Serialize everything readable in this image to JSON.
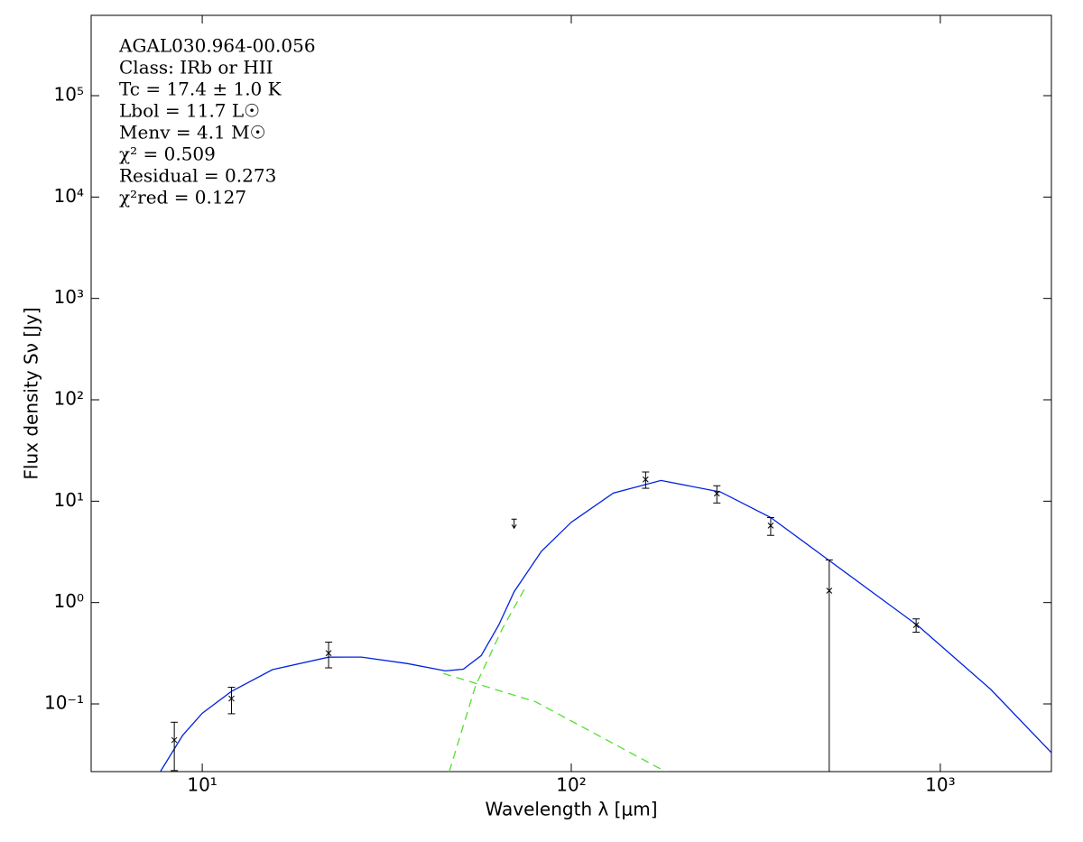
{
  "chart_data": {
    "type": "sed",
    "xlabel": "Wavelength λ [μm]",
    "ylabel": "Flux density Sν [Jy]",
    "annotations": [
      "AGAL030.964-00.056",
      "Class: IRb or HII",
      "Tc = 17.4 ± 1.0 K",
      "Lbol = 11.7 L☉",
      "Menv = 4.1 M☉",
      "χ² = 0.509",
      "Residual = 0.273",
      "χ²red = 0.127"
    ],
    "xscale": "log",
    "yscale": "log",
    "xlim": [
      5,
      2000
    ],
    "ylim": [
      0.0215,
      620000
    ],
    "xticks": [
      {
        "value": 10,
        "label": "10¹"
      },
      {
        "value": 100,
        "label": "10²"
      },
      {
        "value": 1000,
        "label": "10³"
      }
    ],
    "yticks": [
      {
        "value": 0.1,
        "label": "10⁻¹"
      },
      {
        "value": 1,
        "label": "10⁰"
      },
      {
        "value": 10,
        "label": "10¹"
      },
      {
        "value": 100,
        "label": "10²"
      },
      {
        "value": 1000,
        "label": "10³"
      },
      {
        "value": 10000,
        "label": "10⁴"
      },
      {
        "value": 100000,
        "label": "10⁵"
      }
    ],
    "points": {
      "color": "#000000",
      "x": [
        8.4,
        12,
        22,
        159,
        248,
        347,
        500,
        860
      ],
      "values": [
        0.044,
        0.113,
        0.317,
        16.4,
        11.9,
        5.75,
        1.31,
        0.6
      ],
      "errors": [
        0.022,
        0.033,
        0.09,
        3,
        2.3,
        1.15,
        1.32,
        0.09
      ]
    },
    "upper_limits": {
      "color": "#000000",
      "x": [
        70
      ],
      "values": [
        6
      ]
    },
    "curves": [
      {
        "color": "#0022dd",
        "dashed": false,
        "x": [
          7.7,
          8.85,
          10,
          12,
          15.5,
          22,
          27,
          36,
          45.6,
          51,
          57,
          63.6,
          70,
          83,
          100,
          130,
          175,
          254,
          347,
          500,
          870,
          1370,
          2000
        ],
        "values": [
          0.0215,
          0.049,
          0.081,
          0.133,
          0.218,
          0.289,
          0.29,
          0.25,
          0.212,
          0.22,
          0.3,
          0.6,
          1.28,
          3.2,
          6.2,
          12,
          16,
          12.3,
          6.9,
          2.6,
          0.59,
          0.139,
          0.033
        ]
      },
      {
        "color": "#55dd33",
        "dashed": true,
        "x": [
          45,
          80,
          180
        ],
        "values": [
          0.2,
          0.105,
          0.0215
        ]
      },
      {
        "color": "#55dd33",
        "dashed": true,
        "x": [
          46.7,
          55,
          65,
          75
        ],
        "values": [
          0.0215,
          0.15,
          0.55,
          1.4
        ]
      }
    ]
  }
}
